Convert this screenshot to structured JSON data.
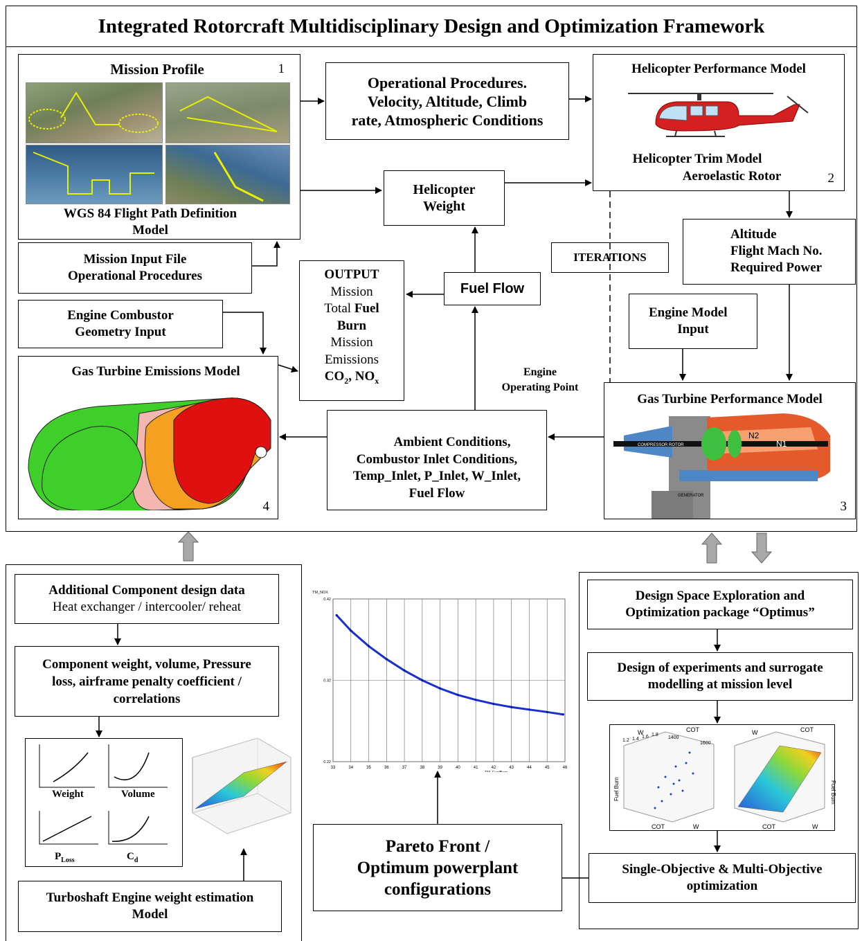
{
  "title": "Integrated Rotorcraft Multidisciplinary Design and Optimization Framework",
  "mission_profile": {
    "title": "Mission Profile",
    "number": "1",
    "caption_1": "WGS 84 Flight Path Definition",
    "caption_2": "Model"
  },
  "operational_procedures": {
    "line1": "Operational Procedures.",
    "line2": "Velocity, Altitude, Climb",
    "line3": "rate, Atmospheric Conditions"
  },
  "helicopter_performance": {
    "title": "Helicopter Performance Model",
    "line1": "Helicopter Trim Model",
    "line2": "Aeroelastic Rotor",
    "number": "2"
  },
  "helicopter_weight": {
    "line1": "Helicopter",
    "line2": "Weight"
  },
  "mission_input": {
    "line1": "Mission Input File",
    "line2": "Operational Procedures"
  },
  "iterations": "ITERATIONS",
  "altitude_box": {
    "line1": "Altitude",
    "line2": "Flight Mach No.",
    "line3": "Required Power"
  },
  "output_box": {
    "l1": "OUTPUT",
    "l2": "Mission",
    "l3a": "Total ",
    "l3b": "Fuel",
    "l4": "Burn",
    "l5": "Mission",
    "l6": "Emissions",
    "l7": "CO",
    "l7sub": "2",
    "l7b": ", NO",
    "l7sub2": "x"
  },
  "fuel_flow": "Fuel Flow",
  "engine_combustor": {
    "line1": "Engine Combustor",
    "line2": "Geometry Input"
  },
  "engine_model_input": {
    "line1": "Engine Model",
    "line2": "Input"
  },
  "engine_operating_point": {
    "line1": "Engine",
    "line2": "Operating Point"
  },
  "emissions_model": {
    "title": "Gas Turbine Emissions Model",
    "number": "4"
  },
  "ambient_box": {
    "line1": "Ambient Conditions,",
    "line2": "Combustor Inlet Conditions,",
    "line3": "Temp_Inlet, P_Inlet, W_Inlet,",
    "line4": "Fuel Flow"
  },
  "gt_performance": {
    "title": "Gas Turbine Performance Model",
    "number": "3",
    "label_n2": "N2",
    "label_n1": "N1",
    "label_rotor": "COMPRESSOR ROTOR",
    "label_gen": "GENERATOR"
  },
  "additional_data": {
    "line1": "Additional Component design data",
    "line2": "Heat exchanger / intercooler/ reheat"
  },
  "component_weight": {
    "line1": "Component weight, volume, Pressure",
    "line2": "loss, airframe penalty coefficient /",
    "line3": "correlations"
  },
  "mini_plots": {
    "weight": "Weight",
    "volume": "Volume",
    "ploss": "P",
    "ploss_sub": "Loss",
    "cd": "C",
    "cd_sub": "d"
  },
  "turboshaft": {
    "line1": "Turboshaft Engine weight estimation",
    "line2": "Model"
  },
  "pareto": {
    "line1": "Pareto Front /",
    "line2": "Optimum powerplant",
    "line3": "configurations"
  },
  "design_space": {
    "line1": "Design Space Exploration and",
    "line2": "Optimization package “Optimus”"
  },
  "doe": {
    "line1": "Design of experiments and surrogate",
    "line2": "modelling at mission level"
  },
  "optimization": {
    "line1": "Single-Objective  & Multi-Objective",
    "line2": "optimization"
  },
  "scatter3d": {
    "w": "W",
    "cot": "COT",
    "fuel": "Fuel Burn",
    "ticks_w": [
      "1.2",
      "1.4",
      "1.6",
      "1.8"
    ],
    "ticks_cot": [
      "1400",
      "1600"
    ]
  },
  "chart_data": {
    "type": "line",
    "title": "",
    "xlabel": "TM_FuelBurn",
    "ylabel": "TM_NOX",
    "xlim": [
      33,
      46
    ],
    "ylim": [
      0.22,
      0.42
    ],
    "x_ticks": [
      "33",
      "34",
      "35",
      "36",
      "37",
      "38",
      "39",
      "40",
      "41",
      "42",
      "43",
      "44",
      "45",
      "46"
    ],
    "y_ticks": [
      "0.22",
      "0.32",
      "0.42"
    ],
    "grid": true,
    "series": [
      {
        "x": [
          33.2,
          34,
          35,
          36,
          37,
          38,
          39,
          40,
          41,
          42,
          43,
          44,
          45,
          45.9
        ],
        "y": [
          0.4,
          0.381,
          0.362,
          0.346,
          0.332,
          0.32,
          0.31,
          0.302,
          0.296,
          0.291,
          0.287,
          0.284,
          0.281,
          0.278
        ]
      }
    ]
  }
}
